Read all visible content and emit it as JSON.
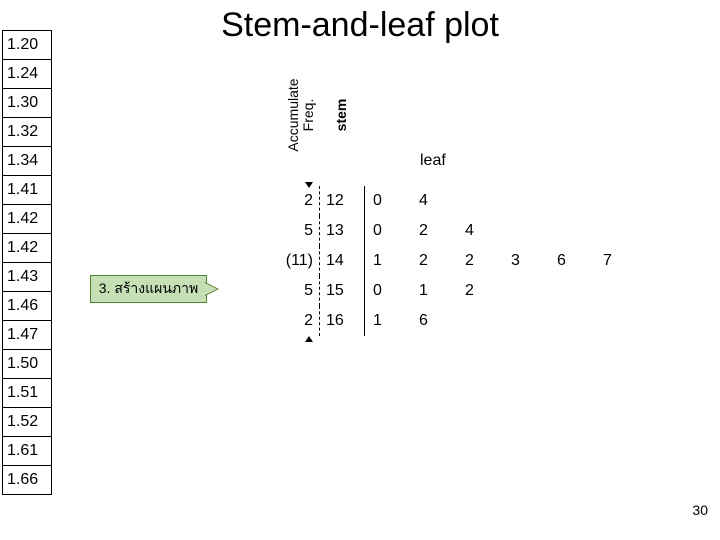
{
  "title": "Stem-and-leaf plot",
  "page_number": "30",
  "side_values": [
    "1.20",
    "1.24",
    "1.30",
    "1.32",
    "1.34",
    "1.41",
    "1.42",
    "1.42",
    "1.43",
    "1.46",
    "1.47",
    "1.50",
    "1.51",
    "1.52",
    "1.61",
    "1.66"
  ],
  "step_label": "3. สร้างแผนภาพ",
  "headers": {
    "acc_line1": "Accumulate",
    "acc_line2": "Freq.",
    "stem": "stem",
    "leaf": "leaf"
  },
  "rows": [
    {
      "acc": "2",
      "stem": "12",
      "leaves": [
        "0",
        "4"
      ]
    },
    {
      "acc": "5",
      "stem": "13",
      "leaves": [
        "0",
        "2",
        "4"
      ]
    },
    {
      "acc": "(11)",
      "stem": "14",
      "leaves": [
        "1",
        "2",
        "2",
        "3",
        "6",
        "7"
      ]
    },
    {
      "acc": "5",
      "stem": "15",
      "leaves": [
        "0",
        "1",
        "2"
      ]
    },
    {
      "acc": "2",
      "stem": "16",
      "leaves": [
        "1",
        "6"
      ]
    }
  ],
  "max_leaves": 6,
  "colors": {
    "background": "#ffffff",
    "text": "#000000",
    "step_fill": "#c5e0b4",
    "step_border": "#548235"
  },
  "fonts": {
    "title_size_pt": 26,
    "body_size_pt": 12
  }
}
